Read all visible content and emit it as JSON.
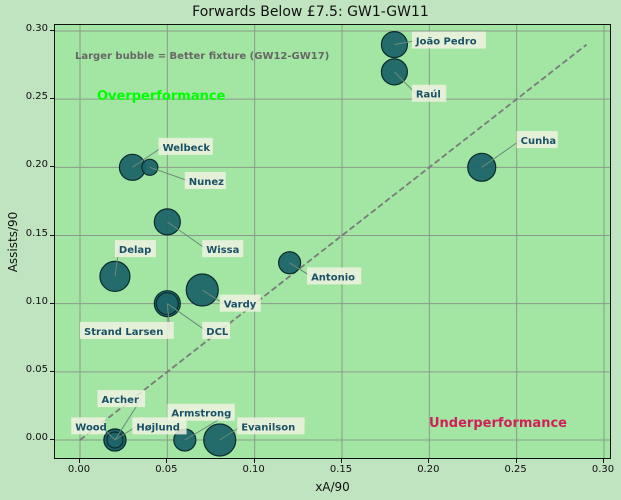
{
  "chart_data": {
    "type": "scatter",
    "title": "Forwards Below £7.5: GW1-GW11",
    "xlabel": "xA/90",
    "ylabel": "Assists/90",
    "xlim": [
      -0.014,
      0.305
    ],
    "ylim": [
      -0.015,
      0.305
    ],
    "xticks": [
      "0.00",
      "0.05",
      "0.10",
      "0.15",
      "0.20",
      "0.25",
      "0.30"
    ],
    "yticks": [
      "0.00",
      "0.05",
      "0.10",
      "0.15",
      "0.20",
      "0.25",
      "0.30"
    ],
    "grid": true,
    "annotations": {
      "note": "Larger bubble = Better fixture (GW12-GW17)",
      "over": "Overperformance",
      "under": "Underperformance"
    },
    "reference_line": {
      "style": "dashed",
      "from": [
        0.0,
        0.0
      ],
      "to": [
        0.29,
        0.29
      ]
    },
    "points": [
      {
        "name": "João Pedro",
        "x": 0.18,
        "y": 0.29,
        "size": 13,
        "lx": 0.19,
        "ly": 0.293
      },
      {
        "name": "Raúl",
        "x": 0.18,
        "y": 0.27,
        "size": 13,
        "lx": 0.19,
        "ly": 0.254
      },
      {
        "name": "Cunha",
        "x": 0.23,
        "y": 0.2,
        "size": 14,
        "lx": 0.25,
        "ly": 0.22
      },
      {
        "name": "Welbeck",
        "x": 0.03,
        "y": 0.2,
        "size": 13,
        "lx": 0.045,
        "ly": 0.215
      },
      {
        "name": "Nunez",
        "x": 0.04,
        "y": 0.2,
        "size": 8,
        "lx": 0.06,
        "ly": 0.19
      },
      {
        "name": "Wissa",
        "x": 0.05,
        "y": 0.16,
        "size": 13,
        "lx": 0.07,
        "ly": 0.14
      },
      {
        "name": "Delap",
        "x": 0.02,
        "y": 0.12,
        "size": 15,
        "lx": 0.02,
        "ly": 0.14
      },
      {
        "name": "Antonio",
        "x": 0.12,
        "y": 0.13,
        "size": 11,
        "lx": 0.13,
        "ly": 0.12
      },
      {
        "name": "Vardy",
        "x": 0.07,
        "y": 0.11,
        "size": 16,
        "lx": 0.08,
        "ly": 0.1
      },
      {
        "name": "Strand Larsen",
        "x": 0.05,
        "y": 0.1,
        "size": 13,
        "lx": 0.0,
        "ly": 0.08
      },
      {
        "name": "DCL",
        "x": 0.05,
        "y": 0.1,
        "size": 11,
        "lx": 0.07,
        "ly": 0.08
      },
      {
        "name": "Archer",
        "x": 0.02,
        "y": 0.0,
        "size": 8,
        "lx": 0.01,
        "ly": 0.03
      },
      {
        "name": "Wood",
        "x": 0.02,
        "y": 0.0,
        "size": 11,
        "lx": -0.005,
        "ly": 0.01
      },
      {
        "name": "Højlund",
        "x": 0.02,
        "y": 0.0,
        "size": 11,
        "lx": 0.03,
        "ly": 0.01
      },
      {
        "name": "Armstrong",
        "x": 0.06,
        "y": 0.0,
        "size": 11,
        "lx": 0.05,
        "ly": 0.02
      },
      {
        "name": "Evanilson",
        "x": 0.08,
        "y": 0.0,
        "size": 16,
        "lx": 0.09,
        "ly": 0.01
      }
    ],
    "colors": {
      "background": "#c0e4c0",
      "plot_bg": "#a3e6a3",
      "bubble": "#1d6469",
      "bubble_edge": "#0b2a2c",
      "label_text": "#1a5166",
      "label_box": "#f0f2e2",
      "over": "#00ff00",
      "under": "#d01f5a",
      "note": "#666666"
    }
  }
}
